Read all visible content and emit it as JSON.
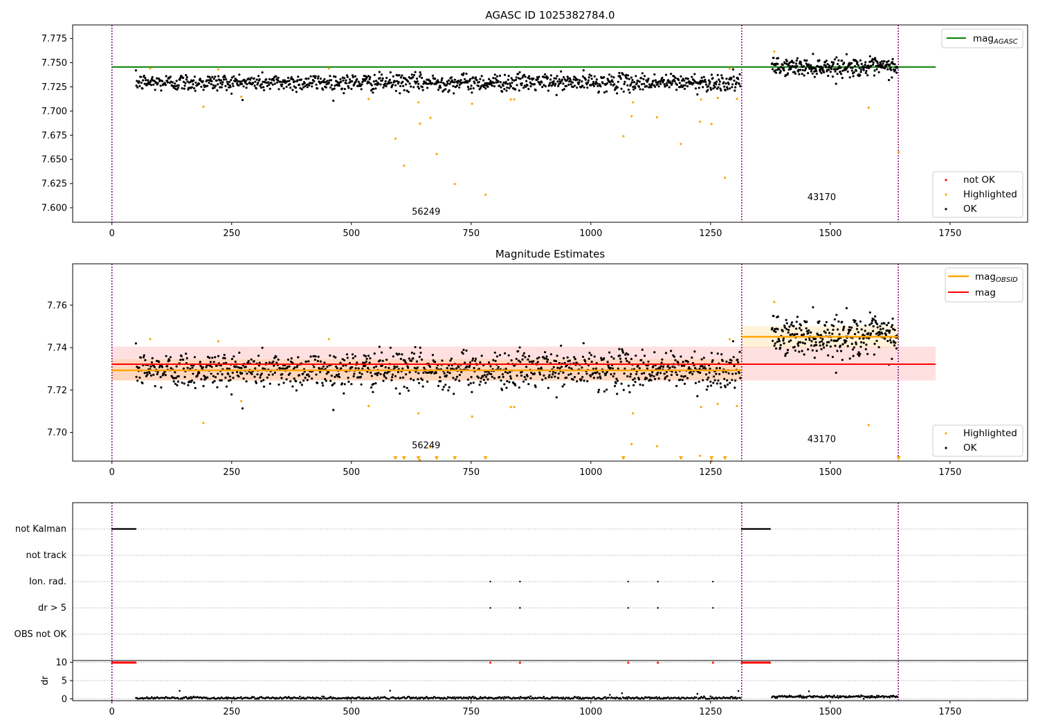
{
  "colors": {
    "ok": "#000000",
    "highlighted": "#ffa500",
    "not_ok": "#ff0000",
    "mag_agasc": "#008000",
    "mag_obsid": "#ffa500",
    "mag": "#ff0000",
    "boundary": "#800080",
    "grid": "#b0b0b0"
  },
  "chart_data": [
    {
      "type": "scatter",
      "title": "AGASC ID 1025382784.0",
      "xlim": [
        -82,
        1912
      ],
      "ylim": [
        7.585,
        7.789
      ],
      "xticks": [
        0,
        250,
        500,
        750,
        1000,
        1250,
        1500,
        1750
      ],
      "yticks": [
        7.6,
        7.625,
        7.65,
        7.675,
        7.7,
        7.725,
        7.75,
        7.775
      ],
      "ytick_labels": [
        "7.600",
        "7.625",
        "7.650",
        "7.675",
        "7.700",
        "7.725",
        "7.750",
        "7.775"
      ],
      "obsid_boundaries": [
        0,
        1315,
        1642
      ],
      "obsid_labels": [
        {
          "text": "56249",
          "x": 656,
          "y": 7.593
        },
        {
          "text": "43170",
          "x": 1482,
          "y": 7.608
        }
      ],
      "mag_agasc": {
        "name": "mag",
        "subscript": "AGASC",
        "value": 7.7455,
        "x_range": [
          0,
          1720
        ]
      },
      "segments": [
        {
          "x_start": 50,
          "x_end": 1312,
          "mean": 7.7295,
          "spread": 0.0045,
          "n": 1100
        },
        {
          "x_start": 1378,
          "x_end": 1640,
          "mean": 7.7455,
          "spread": 0.0045,
          "n": 300
        }
      ],
      "highlighted": [
        [
          80,
          7.744
        ],
        [
          191,
          7.7045
        ],
        [
          222,
          7.743
        ],
        [
          270,
          7.7148
        ],
        [
          453,
          7.744
        ],
        [
          536,
          7.7125
        ],
        [
          592,
          7.6715
        ],
        [
          610,
          7.6435
        ],
        [
          640,
          7.709
        ],
        [
          643,
          7.687
        ],
        [
          665,
          7.693
        ],
        [
          678,
          7.6555
        ],
        [
          716,
          7.6245
        ],
        [
          752,
          7.7075
        ],
        [
          780,
          7.6135
        ],
        [
          833,
          7.712
        ],
        [
          840,
          7.712
        ],
        [
          1068,
          7.674
        ],
        [
          1085,
          7.6945
        ],
        [
          1088,
          7.709
        ],
        [
          1138,
          7.6935
        ],
        [
          1188,
          7.666
        ],
        [
          1228,
          7.689
        ],
        [
          1230,
          7.712
        ],
        [
          1252,
          7.6865
        ],
        [
          1265,
          7.7135
        ],
        [
          1280,
          7.631
        ],
        [
          1290,
          7.744
        ],
        [
          1305,
          7.7125
        ],
        [
          1383,
          7.7615
        ],
        [
          1580,
          7.7035
        ],
        [
          1643,
          7.6575
        ]
      ],
      "legend": {
        "position": "lower right",
        "entries": [
          "not OK",
          "Highlighted",
          "OK"
        ]
      }
    },
    {
      "type": "scatter",
      "title": "Magnitude Estimates",
      "xlim": [
        -82,
        1912
      ],
      "ylim": [
        7.6865,
        7.7795
      ],
      "xticks": [
        0,
        250,
        500,
        750,
        1000,
        1250,
        1500,
        1750
      ],
      "yticks": [
        7.7,
        7.72,
        7.74,
        7.76
      ],
      "ytick_labels": [
        "7.70",
        "7.72",
        "7.74",
        "7.76"
      ],
      "obsid_boundaries": [
        0,
        1315,
        1642
      ],
      "obsid_labels": [
        {
          "text": "56249",
          "x": 656,
          "y": 7.6925
        },
        {
          "text": "43170",
          "x": 1482,
          "y": 7.6955
        }
      ],
      "mag": {
        "name": "mag",
        "value": 7.7322,
        "band": [
          7.7245,
          7.7405
        ],
        "x_range": [
          0,
          1720
        ]
      },
      "mag_obsid": {
        "name": "mag",
        "subscript": "OBSID",
        "values": [
          {
            "x_range": [
              0,
              1315
            ],
            "value": 7.7293,
            "band": [
              7.7245,
              7.7345
            ]
          },
          {
            "x_range": [
              1315,
              1642
            ],
            "value": 7.7451,
            "band": [
              7.7401,
              7.7501
            ]
          }
        ]
      },
      "out_of_range_x": [
        592,
        610,
        640,
        678,
        716,
        780,
        1068,
        1188,
        1252,
        1280,
        1643
      ],
      "legend": {
        "position": "lower right",
        "entries": [
          "Highlighted",
          "OK"
        ]
      }
    },
    {
      "type": "scatter",
      "title": "",
      "xlim": [
        -82,
        1912
      ],
      "xticks": [
        0,
        250,
        500,
        750,
        1000,
        1250,
        1500,
        1750
      ],
      "obsid_boundaries": [
        0,
        1315,
        1642
      ],
      "flag_rows": [
        {
          "label": "not Kalman",
          "ranges": [
            [
              0,
              50
            ],
            [
              1315,
              1375
            ]
          ]
        },
        {
          "label": "not track",
          "x": []
        },
        {
          "label": "Ion. rad.",
          "x": [
            790,
            852,
            1078,
            1140,
            1255
          ]
        },
        {
          "label": "dr > 5",
          "x": [
            790,
            852,
            1078,
            1140,
            1255
          ]
        },
        {
          "label": "OBS not OK",
          "x": []
        }
      ],
      "dr": {
        "ylabel": "dr",
        "ylim": [
          -0.5,
          10.5
        ],
        "yticks": [
          0,
          5,
          10
        ],
        "ytick_labels": [
          "0",
          "5",
          "10"
        ],
        "clipped_at": 10,
        "clipped_ranges": [
          [
            0,
            50
          ],
          [
            1315,
            1375
          ]
        ],
        "clipped_x": [
          790,
          852,
          1078,
          1140,
          1255
        ],
        "segments": [
          {
            "x_start": 50,
            "x_end": 1312,
            "level": 0.25,
            "n": 650
          },
          {
            "x_start": 1378,
            "x_end": 1640,
            "level": 0.6,
            "n": 150
          }
        ]
      }
    }
  ]
}
